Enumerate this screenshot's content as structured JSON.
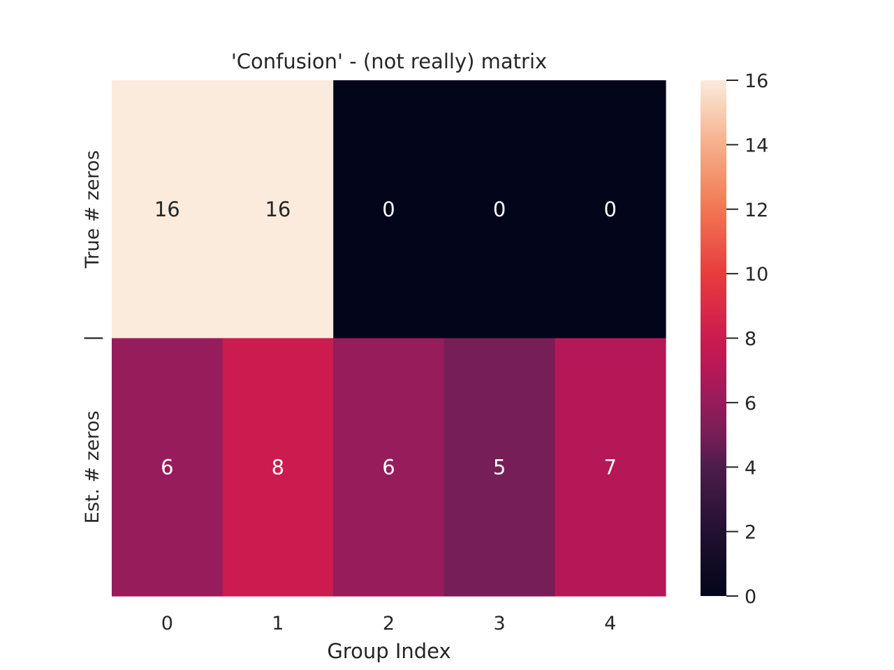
{
  "chart_data": {
    "type": "heatmap",
    "title": "'Confusion' - (not really) matrix",
    "xlabel": "Group Index",
    "ylabel": "",
    "x_tick_labels": [
      "0",
      "1",
      "2",
      "3",
      "4"
    ],
    "y_tick_labels": [
      "True # zeros",
      "|",
      "Est. # zeros"
    ],
    "rows": [
      {
        "name": "True # zeros",
        "values": [
          16,
          16,
          0,
          0,
          0
        ]
      },
      {
        "name": "Est. # zeros",
        "values": [
          6,
          8,
          6,
          5,
          7
        ]
      }
    ],
    "annotations": true,
    "colorbar": {
      "min": 0,
      "max": 16,
      "ticks": [
        "0",
        "2",
        "4",
        "6",
        "8",
        "10",
        "12",
        "14",
        "16"
      ],
      "colormap": "rocket",
      "placement": "right"
    },
    "grid": false
  },
  "colors": {
    "annotation_dark_bg_text": "#ffffff",
    "annotation_light_bg_text": "#262626"
  }
}
